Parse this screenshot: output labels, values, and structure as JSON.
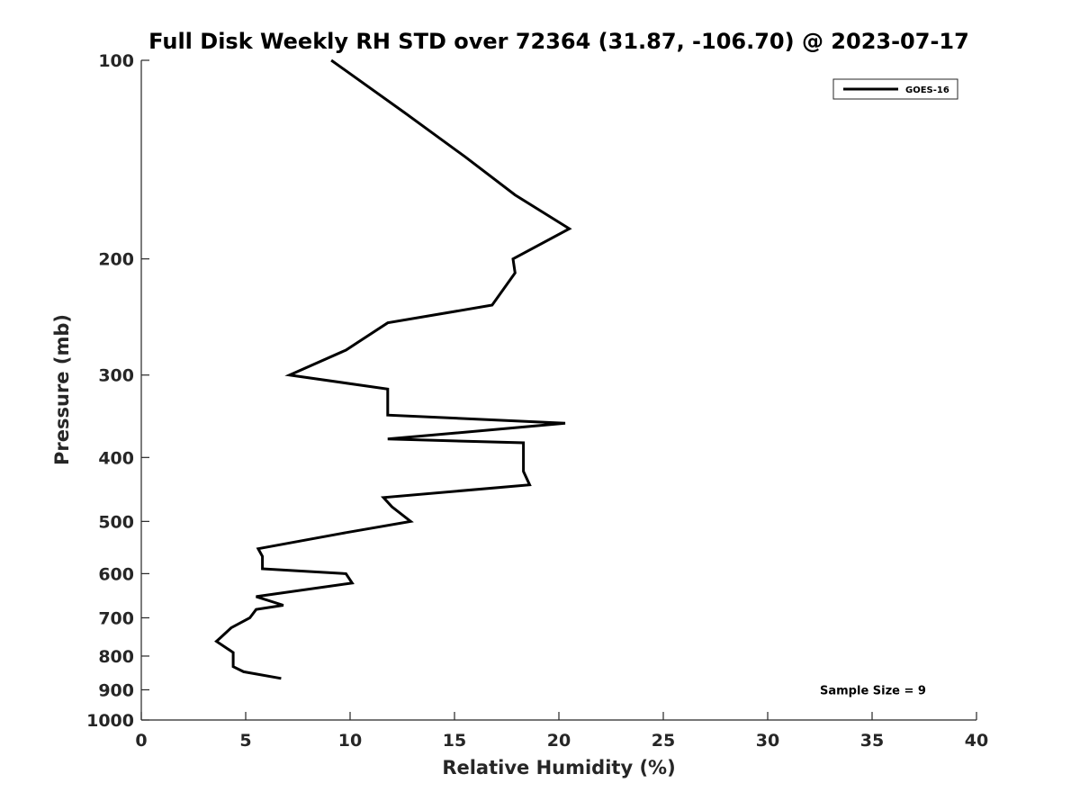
{
  "chart_data": {
    "type": "line",
    "title": "Full Disk Weekly RH STD over 72364 (31.87, -106.70) @ 2023-07-17",
    "xlabel": "Relative Humidity (%)",
    "ylabel": "Pressure (mb)",
    "xlim": [
      0,
      40
    ],
    "ylim": [
      100,
      1000
    ],
    "y_scale": "log",
    "y_reversed": true,
    "x_ticks": [
      0,
      5,
      10,
      15,
      20,
      25,
      30,
      35,
      40
    ],
    "x_tick_labels": [
      "0",
      "5",
      "10",
      "15",
      "20",
      "25",
      "30",
      "35",
      "40"
    ],
    "y_ticks": [
      100,
      200,
      300,
      400,
      500,
      600,
      700,
      800,
      900,
      1000
    ],
    "y_tick_labels": [
      "100",
      "200",
      "300",
      "400",
      "500",
      "600",
      "700",
      "800",
      "900",
      "1000"
    ],
    "grid": false,
    "legend_position": "top-right",
    "series": [
      {
        "name": "GOES-16",
        "color": "#000000",
        "points": [
          {
            "x": 9.1,
            "y": 100
          },
          {
            "x": 12.6,
            "y": 120
          },
          {
            "x": 15.5,
            "y": 140
          },
          {
            "x": 17.9,
            "y": 160
          },
          {
            "x": 20.5,
            "y": 180
          },
          {
            "x": 17.8,
            "y": 200
          },
          {
            "x": 17.9,
            "y": 210
          },
          {
            "x": 16.8,
            "y": 235
          },
          {
            "x": 11.8,
            "y": 250
          },
          {
            "x": 9.8,
            "y": 275
          },
          {
            "x": 7.1,
            "y": 300
          },
          {
            "x": 11.8,
            "y": 315
          },
          {
            "x": 11.8,
            "y": 345
          },
          {
            "x": 20.3,
            "y": 355
          },
          {
            "x": 11.8,
            "y": 375
          },
          {
            "x": 18.3,
            "y": 380
          },
          {
            "x": 18.3,
            "y": 420
          },
          {
            "x": 18.6,
            "y": 440
          },
          {
            "x": 11.6,
            "y": 460
          },
          {
            "x": 12.0,
            "y": 475
          },
          {
            "x": 12.9,
            "y": 500
          },
          {
            "x": 9.8,
            "y": 520
          },
          {
            "x": 5.6,
            "y": 550
          },
          {
            "x": 5.8,
            "y": 565
          },
          {
            "x": 5.8,
            "y": 590
          },
          {
            "x": 9.8,
            "y": 600
          },
          {
            "x": 10.1,
            "y": 620
          },
          {
            "x": 5.5,
            "y": 650
          },
          {
            "x": 6.8,
            "y": 670
          },
          {
            "x": 5.5,
            "y": 680
          },
          {
            "x": 5.2,
            "y": 700
          },
          {
            "x": 4.3,
            "y": 725
          },
          {
            "x": 3.8,
            "y": 750
          },
          {
            "x": 3.6,
            "y": 760
          },
          {
            "x": 4.4,
            "y": 790
          },
          {
            "x": 4.4,
            "y": 830
          },
          {
            "x": 4.9,
            "y": 845
          },
          {
            "x": 6.7,
            "y": 865
          }
        ]
      }
    ],
    "annotations": [
      {
        "text": "Sample Size = 9",
        "x": 32.5,
        "y": 900
      }
    ]
  }
}
